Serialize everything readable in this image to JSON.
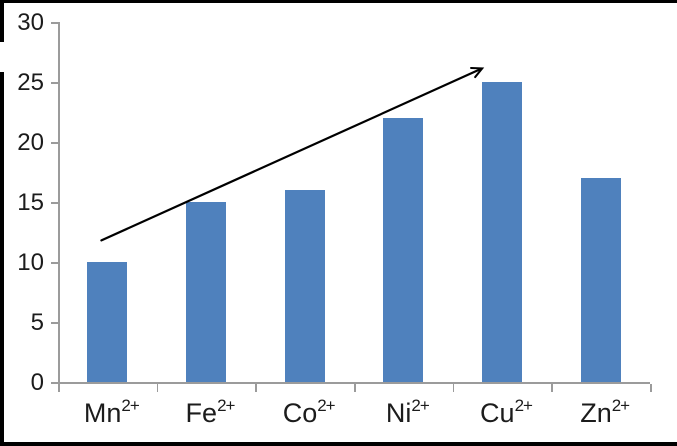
{
  "frame": {
    "border_color": "#000000"
  },
  "chart_data": {
    "type": "bar",
    "title": "",
    "xlabel": "",
    "ylabel": "",
    "categories": [
      {
        "base": "Mn",
        "sup": "2+"
      },
      {
        "base": "Fe",
        "sup": "2+"
      },
      {
        "base": "Co",
        "sup": "2+"
      },
      {
        "base": "Ni",
        "sup": "2+"
      },
      {
        "base": "Cu",
        "sup": "2+"
      },
      {
        "base": "Zn",
        "sup": "2+"
      }
    ],
    "values": [
      10,
      15,
      16,
      22,
      25,
      17
    ],
    "ylim": [
      0,
      30
    ],
    "yticks": [
      0,
      5,
      10,
      15,
      20,
      25,
      30
    ],
    "grid": false,
    "legend": null,
    "bar_color": "#4F81BD",
    "axis_color": "#9b9b9b",
    "text_color": "#1c1c1c",
    "annotation": {
      "type": "arrow",
      "color": "#000000",
      "from": {
        "cat_pos": 0.44,
        "value": 11.8
      },
      "to": {
        "cat_pos": 4.29,
        "value": 26.1
      }
    }
  }
}
